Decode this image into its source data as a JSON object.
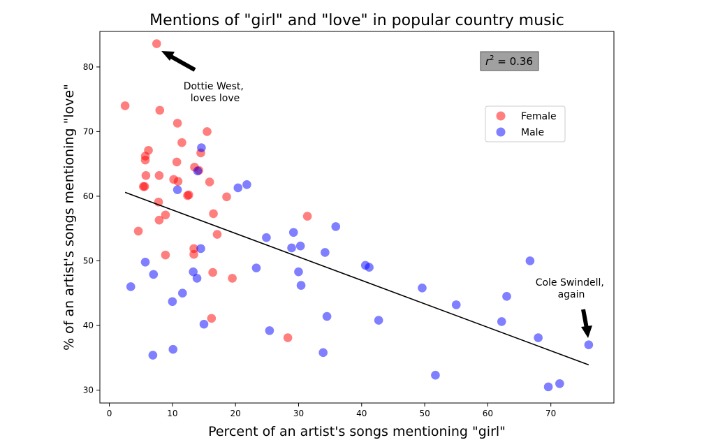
{
  "chart_data": {
    "type": "scatter",
    "title": "Mentions of \"girl\" and \"love\" in popular country music",
    "xlabel": "Percent of an artist's songs mentioning \"girl\"",
    "ylabel": "% of an artist's songs mentioning \"love\"",
    "xlim": [
      -1.5,
      80
    ],
    "ylim": [
      28,
      85.5
    ],
    "xticks": [
      0,
      10,
      20,
      30,
      40,
      50,
      60,
      70
    ],
    "yticks": [
      30,
      40,
      50,
      60,
      70,
      80
    ],
    "grid": false,
    "legend_position": "upper-right",
    "r2_label_math": "r",
    "r2_label_value": " = 0.36",
    "series": [
      {
        "name": "Female",
        "color": "#ff0000",
        "points": [
          [
            7.5,
            83.6
          ],
          [
            2.5,
            74.0
          ],
          [
            8.0,
            73.3
          ],
          [
            10.8,
            71.3
          ],
          [
            15.5,
            70.0
          ],
          [
            11.5,
            68.3
          ],
          [
            14.5,
            66.7
          ],
          [
            6.2,
            67.1
          ],
          [
            5.7,
            66.2
          ],
          [
            5.7,
            65.6
          ],
          [
            10.7,
            65.3
          ],
          [
            13.5,
            64.5
          ],
          [
            14.2,
            64.0
          ],
          [
            5.8,
            63.2
          ],
          [
            7.9,
            63.2
          ],
          [
            10.2,
            62.6
          ],
          [
            10.9,
            62.3
          ],
          [
            15.9,
            62.2
          ],
          [
            5.4,
            61.5
          ],
          [
            5.6,
            61.5
          ],
          [
            12.4,
            60.1
          ],
          [
            12.6,
            60.2
          ],
          [
            18.6,
            59.9
          ],
          [
            7.8,
            59.1
          ],
          [
            16.5,
            57.3
          ],
          [
            8.9,
            57.1
          ],
          [
            7.9,
            56.3
          ],
          [
            31.4,
            56.9
          ],
          [
            4.6,
            54.6
          ],
          [
            17.1,
            54.1
          ],
          [
            13.4,
            51.9
          ],
          [
            13.4,
            51.0
          ],
          [
            8.9,
            50.9
          ],
          [
            16.4,
            48.2
          ],
          [
            19.5,
            47.3
          ],
          [
            16.2,
            41.1
          ],
          [
            28.3,
            38.1
          ]
        ]
      },
      {
        "name": "Male",
        "color": "#0000ff",
        "points": [
          [
            14.6,
            67.5
          ],
          [
            14.0,
            63.9
          ],
          [
            21.8,
            61.8
          ],
          [
            20.4,
            61.3
          ],
          [
            10.8,
            61.0
          ],
          [
            35.9,
            55.3
          ],
          [
            29.2,
            54.4
          ],
          [
            24.9,
            53.6
          ],
          [
            30.3,
            52.3
          ],
          [
            28.9,
            52.0
          ],
          [
            14.5,
            51.9
          ],
          [
            34.2,
            51.3
          ],
          [
            5.7,
            49.8
          ],
          [
            66.7,
            50.0
          ],
          [
            40.6,
            49.3
          ],
          [
            41.2,
            49.0
          ],
          [
            23.3,
            48.9
          ],
          [
            13.3,
            48.3
          ],
          [
            30.0,
            48.3
          ],
          [
            7.0,
            47.9
          ],
          [
            13.9,
            47.3
          ],
          [
            30.4,
            46.2
          ],
          [
            3.4,
            46.0
          ],
          [
            49.6,
            45.8
          ],
          [
            11.6,
            45.0
          ],
          [
            63.0,
            44.5
          ],
          [
            10.0,
            43.7
          ],
          [
            55.0,
            43.2
          ],
          [
            34.5,
            41.4
          ],
          [
            42.7,
            40.8
          ],
          [
            62.2,
            40.6
          ],
          [
            15.0,
            40.2
          ],
          [
            25.4,
            39.2
          ],
          [
            68.0,
            38.1
          ],
          [
            76.0,
            37.0
          ],
          [
            10.1,
            36.3
          ],
          [
            33.9,
            35.8
          ],
          [
            6.9,
            35.4
          ],
          [
            51.7,
            32.3
          ],
          [
            71.4,
            31.0
          ],
          [
            69.6,
            30.5
          ]
        ]
      }
    ],
    "fit_line": {
      "x": [
        2.5,
        76.0
      ],
      "y": [
        60.6,
        33.9
      ]
    },
    "annotations": [
      {
        "lines": [
          "Dottie West,",
          "loves love"
        ],
        "arrow_to": [
          7.6,
          83.1
        ]
      },
      {
        "lines": [
          "Cole Swindell,",
          "again"
        ],
        "arrow_to": [
          75.8,
          37.6
        ]
      }
    ]
  }
}
